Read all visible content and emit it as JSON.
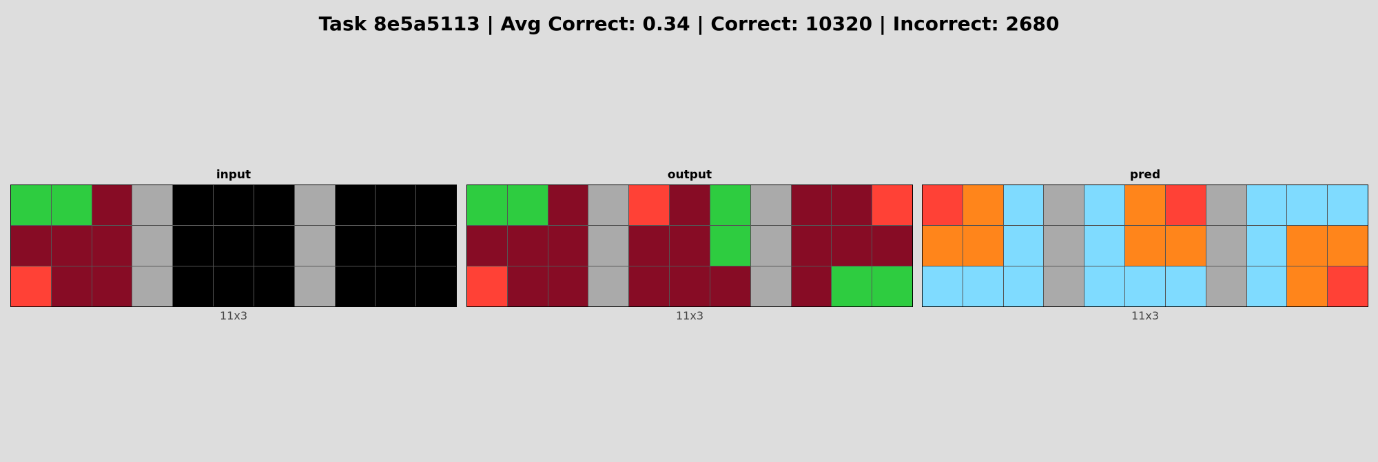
{
  "title": "Task 8e5a5113 | Avg Correct: 0.34 | Correct: 10320 | Incorrect: 2680",
  "palette": {
    "0": "#000000",
    "2": "#ff4136",
    "3": "#2ecc40",
    "5": "#aaaaaa",
    "7": "#ff851b",
    "8": "#7fdbff",
    "9": "#870c25"
  },
  "panels": [
    {
      "label": "input",
      "dims": "11x3",
      "grid": [
        [
          3,
          3,
          9,
          5,
          0,
          0,
          0,
          5,
          0,
          0,
          0
        ],
        [
          9,
          9,
          9,
          5,
          0,
          0,
          0,
          5,
          0,
          0,
          0
        ],
        [
          2,
          9,
          9,
          5,
          0,
          0,
          0,
          5,
          0,
          0,
          0
        ]
      ]
    },
    {
      "label": "output",
      "dims": "11x3",
      "grid": [
        [
          3,
          3,
          9,
          5,
          2,
          9,
          3,
          5,
          9,
          9,
          2
        ],
        [
          9,
          9,
          9,
          5,
          9,
          9,
          3,
          5,
          9,
          9,
          9
        ],
        [
          2,
          9,
          9,
          5,
          9,
          9,
          9,
          5,
          9,
          3,
          3
        ]
      ]
    },
    {
      "label": "pred",
      "dims": "11x3",
      "grid": [
        [
          2,
          7,
          8,
          5,
          8,
          7,
          2,
          5,
          8,
          8,
          8
        ],
        [
          7,
          7,
          8,
          5,
          8,
          7,
          7,
          5,
          8,
          7,
          7
        ],
        [
          8,
          8,
          8,
          5,
          8,
          8,
          8,
          5,
          8,
          7,
          2
        ]
      ]
    }
  ]
}
